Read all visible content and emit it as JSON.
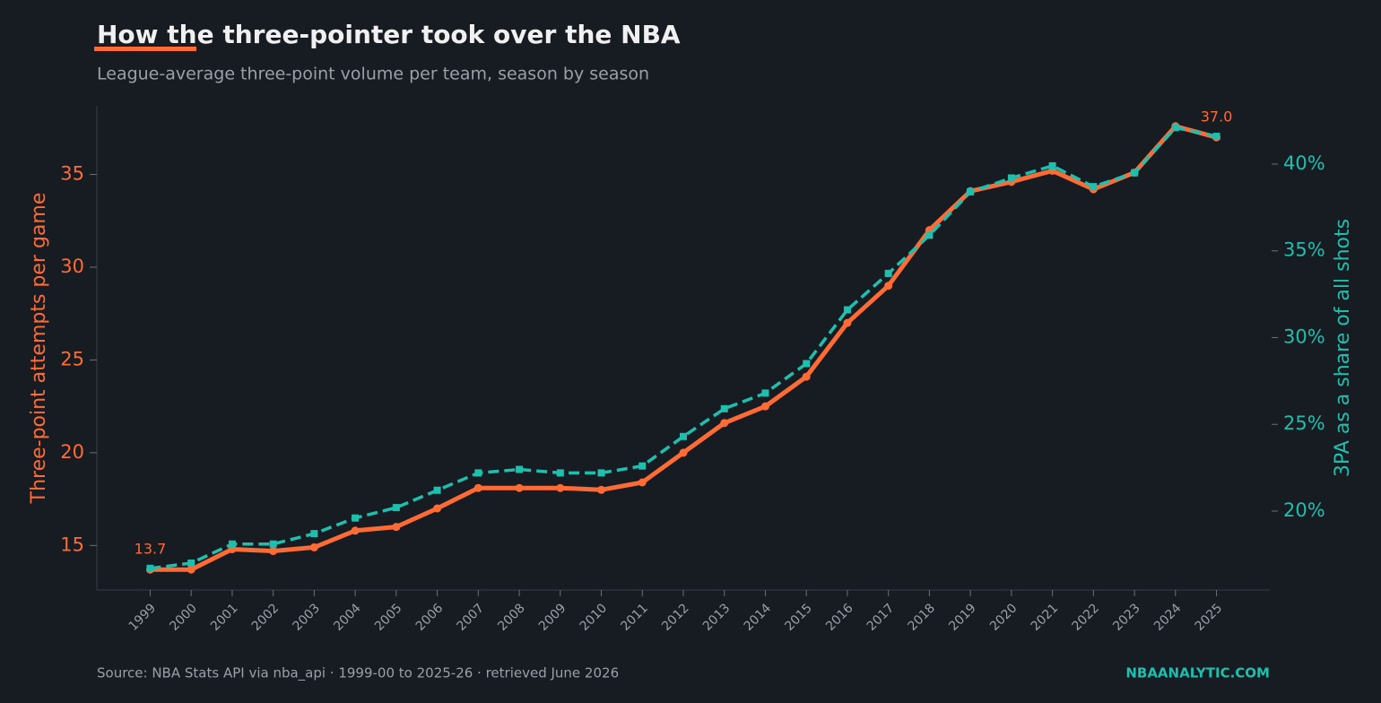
{
  "chart_data": {
    "type": "line",
    "title": "How the three-pointer took over the NBA",
    "subtitle": "League-average three-point volume per team, season by season",
    "ylabel": "Three-point attempts per game",
    "y2label": "3PA as a share of all shots",
    "source": "Source: NBA Stats API via nba_api · 1999-00 to 2025-26 · retrieved June 2026",
    "brand": "NBAANALYTIC.COM",
    "x": [
      1999,
      2000,
      2001,
      2002,
      2003,
      2004,
      2005,
      2006,
      2007,
      2008,
      2009,
      2010,
      2011,
      2012,
      2013,
      2014,
      2015,
      2016,
      2017,
      2018,
      2019,
      2020,
      2021,
      2022,
      2023,
      2024,
      2025
    ],
    "xlim": [
      1997.7,
      2026.3
    ],
    "xticks": [
      1999,
      2000,
      2001,
      2002,
      2003,
      2004,
      2005,
      2006,
      2007,
      2008,
      2009,
      2010,
      2011,
      2012,
      2013,
      2014,
      2015,
      2016,
      2017,
      2018,
      2019,
      2020,
      2021,
      2022,
      2023,
      2024,
      2025
    ],
    "ylim": [
      12.6,
      38.7
    ],
    "yticks": [
      15,
      20,
      25,
      30,
      35
    ],
    "y2lim": [
      15.45,
      43.36
    ],
    "y2ticks": [
      {
        "value": 20,
        "label": "20%"
      },
      {
        "value": 25,
        "label": "25%"
      },
      {
        "value": 30,
        "label": "30%"
      },
      {
        "value": 35,
        "label": "35%"
      },
      {
        "value": 40,
        "label": "40%"
      }
    ],
    "series": [
      {
        "color": "#ff6b35",
        "marker": "circle",
        "dashed": false,
        "values": [
          13.7,
          13.7,
          14.8,
          14.7,
          14.9,
          15.8,
          16.0,
          17.0,
          18.1,
          18.1,
          18.1,
          18.0,
          18.4,
          20.0,
          21.6,
          22.5,
          24.1,
          27.0,
          29.0,
          32.0,
          34.1,
          34.6,
          35.2,
          34.2,
          35.1,
          37.6,
          37.0
        ],
        "value_labels": [
          "13.7",
          null,
          null,
          null,
          null,
          null,
          null,
          null,
          null,
          null,
          null,
          null,
          null,
          null,
          null,
          null,
          null,
          null,
          null,
          null,
          null,
          null,
          null,
          null,
          null,
          null,
          "37.0"
        ]
      },
      {
        "color": "#1fbfae",
        "marker": "square",
        "dashed": true,
        "axis": "y2",
        "values": [
          16.7,
          17.0,
          18.1,
          18.1,
          18.7,
          19.6,
          20.2,
          21.2,
          22.2,
          22.4,
          22.2,
          22.2,
          22.6,
          24.3,
          25.9,
          26.8,
          28.5,
          31.6,
          33.7,
          35.9,
          38.4,
          39.2,
          39.9,
          38.7,
          39.5,
          42.1,
          41.6
        ]
      }
    ]
  }
}
